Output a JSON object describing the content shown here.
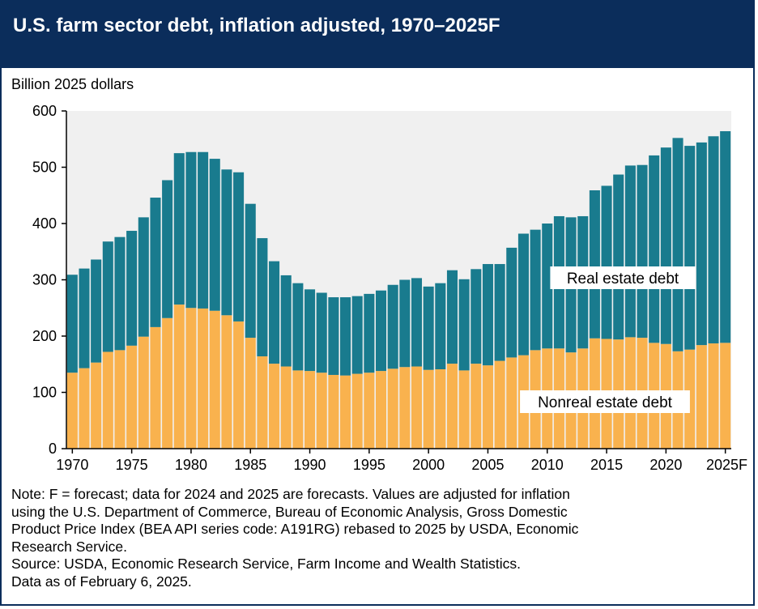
{
  "title": "U.S. farm sector debt, inflation adjusted, 1970–2025F",
  "colors": {
    "header": "#0b2d5b",
    "plot_bg": "#f0f0f0",
    "real_estate": "#197b8e",
    "nonreal_estate": "#f9b24e"
  },
  "chart_data": {
    "type": "bar",
    "stacked": true,
    "ylabel": "Billion 2025 dollars",
    "xlabel": "",
    "ylim": [
      0,
      600
    ],
    "yticks": [
      "0",
      "100",
      "200",
      "300",
      "400",
      "500",
      "600"
    ],
    "xticks": [
      "1970",
      "1975",
      "1980",
      "1985",
      "1990",
      "1995",
      "2000",
      "2005",
      "2010",
      "2015",
      "2020",
      "2025F"
    ],
    "grid": false,
    "categories": [
      "1970",
      "1971",
      "1972",
      "1973",
      "1974",
      "1975",
      "1976",
      "1977",
      "1978",
      "1979",
      "1980",
      "1981",
      "1982",
      "1983",
      "1984",
      "1985",
      "1986",
      "1987",
      "1988",
      "1989",
      "1990",
      "1991",
      "1992",
      "1993",
      "1994",
      "1995",
      "1996",
      "1997",
      "1998",
      "1999",
      "2000",
      "2001",
      "2002",
      "2003",
      "2004",
      "2005",
      "2006",
      "2007",
      "2008",
      "2009",
      "2010",
      "2011",
      "2012",
      "2013",
      "2014",
      "2015",
      "2016",
      "2017",
      "2018",
      "2019",
      "2020",
      "2021",
      "2022",
      "2023",
      "2024",
      "2025"
    ],
    "series": [
      {
        "name": "Nonreal estate debt",
        "values": [
          135,
          143,
          153,
          172,
          175,
          183,
          199,
          216,
          232,
          256,
          250,
          249,
          245,
          237,
          226,
          197,
          164,
          151,
          146,
          139,
          138,
          135,
          131,
          130,
          133,
          135,
          138,
          142,
          145,
          146,
          140,
          141,
          151,
          139,
          151,
          148,
          156,
          162,
          166,
          175,
          178,
          178,
          171,
          178,
          196,
          195,
          194,
          198,
          197,
          188,
          186,
          173,
          176,
          184,
          187,
          188
        ]
      },
      {
        "name": "Real estate debt",
        "values": [
          174,
          177,
          183,
          196,
          201,
          204,
          212,
          230,
          245,
          269,
          277,
          278,
          270,
          259,
          265,
          238,
          210,
          182,
          162,
          155,
          145,
          142,
          138,
          139,
          138,
          140,
          143,
          149,
          155,
          157,
          148,
          153,
          166,
          162,
          168,
          180,
          172,
          195,
          216,
          214,
          222,
          235,
          240,
          235,
          263,
          272,
          293,
          305,
          307,
          333,
          349,
          379,
          362,
          360,
          368,
          376
        ]
      }
    ],
    "annotations": [
      "Real estate debt",
      "Nonreal estate debt"
    ]
  },
  "notes": [
    "Note: F = forecast; data for 2024 and 2025 are forecasts. Values are adjusted for inflation",
    "using the U.S. Department of Commerce, Bureau of Economic Analysis, Gross Domestic",
    "Product Price Index (BEA API series code: A191RG) rebased to 2025 by USDA, Economic",
    "Research Service.",
    "Source: USDA, Economic Research Service, Farm Income and Wealth Statistics.",
    "Data as of February 6, 2025."
  ]
}
